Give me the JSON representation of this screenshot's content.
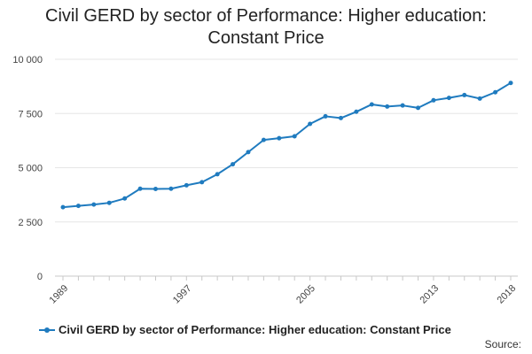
{
  "chart_data": {
    "type": "line",
    "title_lines": [
      "Civil GERD by sector of Performance: Higher education:",
      "Constant Price"
    ],
    "xlabel": "",
    "ylabel": "",
    "x": [
      1989,
      1990,
      1991,
      1992,
      1993,
      1994,
      1995,
      1996,
      1997,
      1998,
      1999,
      2000,
      2001,
      2002,
      2003,
      2004,
      2005,
      2006,
      2007,
      2008,
      2009,
      2010,
      2011,
      2012,
      2013,
      2014,
      2015,
      2016,
      2017,
      2018
    ],
    "x_tick_labels": [
      "1989",
      "1997",
      "2005",
      "2013",
      "2018"
    ],
    "x_tick_values": [
      1989,
      1997,
      2005,
      2013,
      2018
    ],
    "ylim": [
      0,
      10000
    ],
    "y_ticks": [
      0,
      2500,
      5000,
      7500,
      10000
    ],
    "y_tick_labels": [
      "0",
      "2 500",
      "5 000",
      "7 500",
      "10 000"
    ],
    "grid": true,
    "legend_position": "bottom",
    "series": [
      {
        "name": "Civil GERD by sector of Performance: Higher education: Constant Price",
        "color": "#1f7bbf",
        "values": [
          3180,
          3240,
          3300,
          3380,
          3580,
          4030,
          4020,
          4030,
          4190,
          4330,
          4700,
          5160,
          5720,
          6280,
          6360,
          6450,
          7020,
          7370,
          7290,
          7580,
          7920,
          7820,
          7870,
          7760,
          8110,
          8220,
          8350,
          8190,
          8480,
          8910
        ]
      }
    ]
  },
  "footer": {
    "source_label": "Source:"
  }
}
